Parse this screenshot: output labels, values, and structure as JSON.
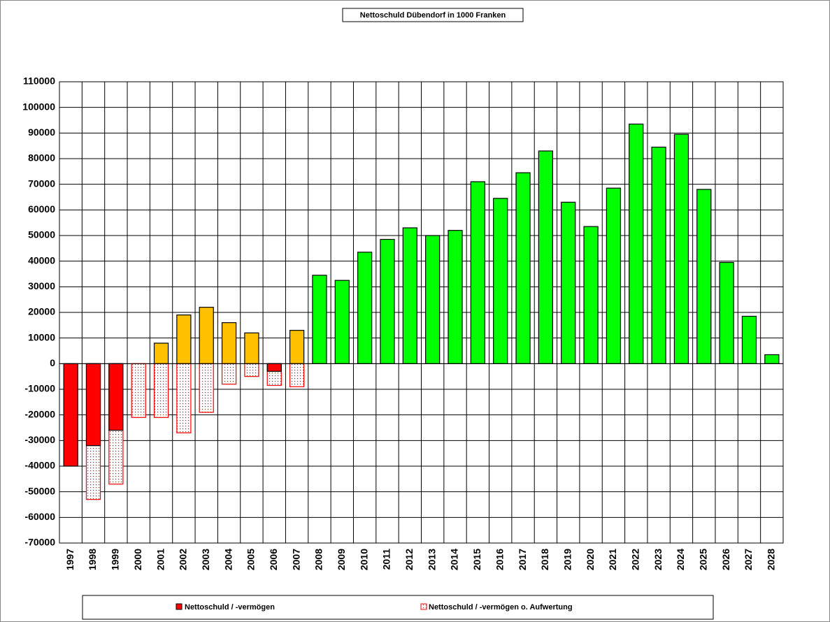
{
  "chart_data": {
    "type": "bar",
    "title": "Nettoschuld Dübendorf in 1000 Franken",
    "categories": [
      "1997",
      "1998",
      "1999",
      "2000",
      "2001",
      "2002",
      "2003",
      "2004",
      "2005",
      "2006",
      "2007",
      "2008",
      "2009",
      "2010",
      "2011",
      "2012",
      "2013",
      "2014",
      "2015",
      "2016",
      "2017",
      "2018",
      "2019",
      "2020",
      "2021",
      "2022",
      "2023",
      "2024",
      "2025",
      "2026",
      "2027",
      "2028"
    ],
    "series": [
      {
        "name": "Nettoschuld / -vermögen",
        "color": "#ff0000",
        "values": [
          -40000,
          -32000,
          -26000,
          0,
          8000,
          19000,
          22000,
          16000,
          12000,
          -3000,
          13000,
          34500,
          32500,
          43500,
          48500,
          53000,
          50000,
          52000,
          71000,
          64500,
          74500,
          83000,
          63000,
          53500,
          68500,
          93500,
          84500,
          89500,
          68000,
          39500,
          18500,
          3500
        ],
        "colors": [
          "#ff0000",
          "#ff0000",
          "#ff0000",
          "#ffc000",
          "#ffc000",
          "#ffc000",
          "#ffc000",
          "#ffc000",
          "#ffc000",
          "#ff0000",
          "#ffc000",
          "#00ff00",
          "#00ff00",
          "#00ff00",
          "#00ff00",
          "#00ff00",
          "#00ff00",
          "#00ff00",
          "#00ff00",
          "#00ff00",
          "#00ff00",
          "#00ff00",
          "#00ff00",
          "#00ff00",
          "#00ff00",
          "#00ff00",
          "#00ff00",
          "#00ff00",
          "#00ff00",
          "#00ff00",
          "#00ff00",
          "#00ff00"
        ]
      },
      {
        "name": "Nettoschuld / -vermögen o. Aufwertung",
        "color": "#ff0000",
        "values": [
          null,
          -53000,
          -47000,
          -21000,
          -21000,
          -27000,
          -19000,
          -8000,
          -5000,
          -8500,
          -9000,
          null,
          null,
          null,
          null,
          null,
          null,
          null,
          null,
          null,
          null,
          null,
          null,
          null,
          null,
          null,
          null,
          null,
          null,
          null,
          null,
          null
        ]
      }
    ],
    "ylim": [
      -70000,
      110000
    ],
    "yticks": [
      -70000,
      -60000,
      -50000,
      -40000,
      -30000,
      -20000,
      -10000,
      0,
      10000,
      20000,
      30000,
      40000,
      50000,
      60000,
      70000,
      80000,
      90000,
      100000,
      110000
    ],
    "grid": true
  }
}
